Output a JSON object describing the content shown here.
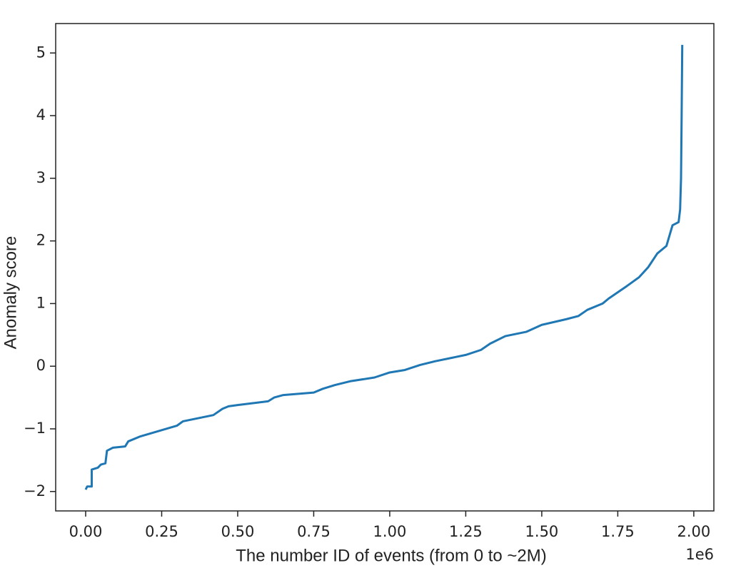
{
  "chart_data": {
    "type": "line",
    "xlabel": "The number ID of events (from 0 to ~2M)",
    "ylabel": "Anomaly score",
    "x_offset_label": "1e6",
    "xlim": [
      -0.0986,
      2.066
    ],
    "ylim": [
      -2.31,
      5.47
    ],
    "xticks": [
      {
        "value": 0,
        "label": "0.00"
      },
      {
        "value": 0.25,
        "label": "0.25"
      },
      {
        "value": 0.5,
        "label": "0.50"
      },
      {
        "value": 0.75,
        "label": "0.75"
      },
      {
        "value": 1,
        "label": "1.00"
      },
      {
        "value": 1.25,
        "label": "1.25"
      },
      {
        "value": 1.5,
        "label": "1.50"
      },
      {
        "value": 1.75,
        "label": "1.75"
      },
      {
        "value": 2,
        "label": "2.00"
      }
    ],
    "yticks": [
      {
        "value": -2,
        "label": "−2"
      },
      {
        "value": -1,
        "label": "−1"
      },
      0,
      1,
      2,
      3,
      4,
      5
    ],
    "series": [
      {
        "color": "#1f77b4",
        "x": [
          0,
          0.005,
          0.02,
          0.02,
          0.04,
          0.05,
          0.065,
          0.07,
          0.09,
          0.13,
          0.14,
          0.18,
          0.25,
          0.3,
          0.32,
          0.4,
          0.42,
          0.45,
          0.47,
          0.5,
          0.6,
          0.62,
          0.65,
          0.75,
          0.78,
          0.82,
          0.87,
          0.95,
          1.0,
          1.05,
          1.1,
          1.15,
          1.25,
          1.3,
          1.33,
          1.38,
          1.45,
          1.5,
          1.58,
          1.62,
          1.65,
          1.7,
          1.72,
          1.75,
          1.78,
          1.82,
          1.85,
          1.88,
          1.91,
          1.93,
          1.95,
          1.955,
          1.958,
          1.96,
          1.962
        ],
        "values": [
          -1.97,
          -1.92,
          -1.92,
          -1.65,
          -1.62,
          -1.57,
          -1.55,
          -1.35,
          -1.3,
          -1.28,
          -1.2,
          -1.12,
          -1.02,
          -0.95,
          -0.88,
          -0.8,
          -0.78,
          -0.68,
          -0.64,
          -0.62,
          -0.56,
          -0.5,
          -0.46,
          -0.42,
          -0.36,
          -0.3,
          -0.24,
          -0.18,
          -0.1,
          -0.06,
          0.02,
          0.08,
          0.18,
          0.26,
          0.36,
          0.48,
          0.55,
          0.66,
          0.75,
          0.8,
          0.9,
          1.0,
          1.08,
          1.18,
          1.28,
          1.42,
          1.58,
          1.8,
          1.92,
          2.25,
          2.3,
          2.5,
          3.0,
          4.0,
          5.13
        ]
      }
    ]
  }
}
